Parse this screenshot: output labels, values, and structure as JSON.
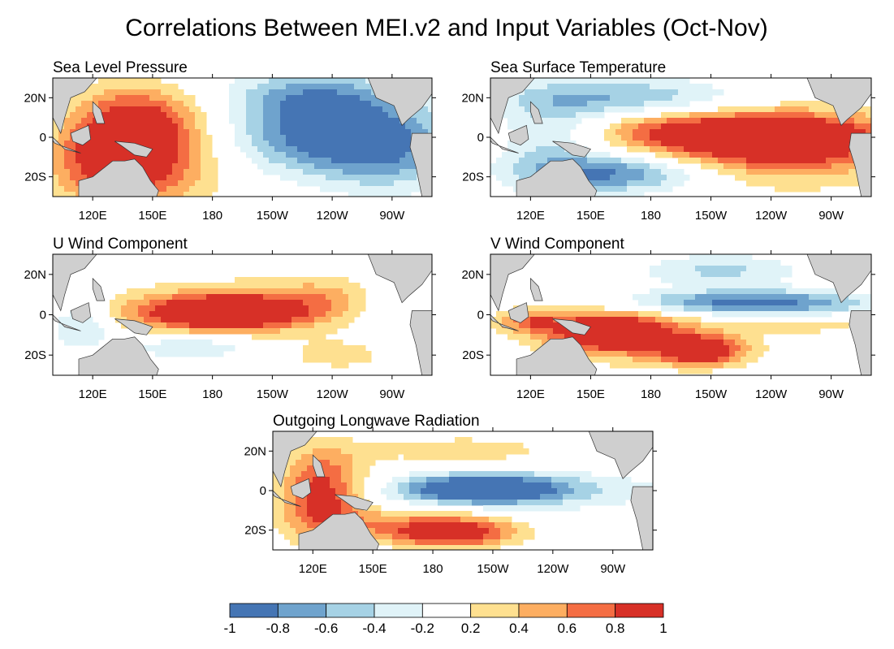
{
  "title": "Correlations Between MEI.v2 and Input Variables (Oct-Nov)",
  "chart_data": [
    {
      "type": "heatmap",
      "title": "Sea Level Pressure",
      "x_ticks": [
        "120E",
        "150E",
        "180",
        "150W",
        "120W",
        "90W"
      ],
      "y_ticks": [
        "20N",
        "0",
        "20S"
      ],
      "extent": {
        "lon": [
          100,
          290
        ],
        "lat": [
          -30,
          30
        ]
      },
      "blobs": [
        {
          "lon": 140,
          "lat": -12,
          "rx": 40,
          "ry": 24,
          "v": 1.0
        },
        {
          "lon": 150,
          "lat": 10,
          "rx": 28,
          "ry": 16,
          "v": 0.5
        },
        {
          "lon": 130,
          "lat": 0,
          "rx": 22,
          "ry": 26,
          "v": 0.4
        },
        {
          "lon": 240,
          "lat": 2,
          "rx": 50,
          "ry": 20,
          "v": -1.0
        },
        {
          "lon": 230,
          "lat": 22,
          "rx": 40,
          "ry": 12,
          "v": -0.5
        },
        {
          "lon": 270,
          "lat": -10,
          "rx": 35,
          "ry": 20,
          "v": -0.4
        }
      ]
    },
    {
      "type": "heatmap",
      "title": "Sea Surface Temperature",
      "x_ticks": [
        "120E",
        "150E",
        "180",
        "150W",
        "120W",
        "90W"
      ],
      "y_ticks": [
        "20N",
        "0",
        "20S"
      ],
      "extent": {
        "lon": [
          100,
          290
        ],
        "lat": [
          -30,
          30
        ]
      },
      "blobs": [
        {
          "lon": 235,
          "lat": 0,
          "rx": 65,
          "ry": 13,
          "v": 1.15
        },
        {
          "lon": 250,
          "lat": -8,
          "rx": 55,
          "ry": 20,
          "v": 0.45
        },
        {
          "lon": 190,
          "lat": 4,
          "rx": 35,
          "ry": 8,
          "v": 0.3
        },
        {
          "lon": 160,
          "lat": -18,
          "rx": 45,
          "ry": 10,
          "v": -0.85
        },
        {
          "lon": 165,
          "lat": 20,
          "rx": 60,
          "ry": 10,
          "v": -0.6
        },
        {
          "lon": 130,
          "lat": 0,
          "rx": 25,
          "ry": 22,
          "v": -0.4
        }
      ]
    },
    {
      "type": "heatmap",
      "title": "U Wind Component",
      "x_ticks": [
        "120E",
        "150E",
        "180",
        "150W",
        "120W",
        "90W"
      ],
      "y_ticks": [
        "20N",
        "0",
        "20S"
      ],
      "extent": {
        "lon": [
          100,
          290
        ],
        "lat": [
          -30,
          30
        ]
      },
      "blobs": [
        {
          "lon": 185,
          "lat": 1,
          "rx": 40,
          "ry": 8,
          "v": 1.15
        },
        {
          "lon": 190,
          "lat": 3,
          "rx": 65,
          "ry": 14,
          "v": 0.45
        },
        {
          "lon": 240,
          "lat": 10,
          "rx": 35,
          "ry": 10,
          "v": 0.3
        },
        {
          "lon": 245,
          "lat": -20,
          "rx": 30,
          "ry": 8,
          "v": 0.3
        },
        {
          "lon": 170,
          "lat": -16,
          "rx": 30,
          "ry": 6,
          "v": -0.45
        },
        {
          "lon": 115,
          "lat": -5,
          "rx": 15,
          "ry": 12,
          "v": -0.5
        },
        {
          "lon": 270,
          "lat": 5,
          "rx": 18,
          "ry": 18,
          "v": -0.3
        }
      ]
    },
    {
      "type": "heatmap",
      "title": "V Wind Component",
      "x_ticks": [
        "120E",
        "150E",
        "180",
        "150W",
        "120W",
        "90W"
      ],
      "y_ticks": [
        "20N",
        "0",
        "20S"
      ],
      "extent": {
        "lon": [
          100,
          290
        ],
        "lat": [
          -30,
          30
        ]
      },
      "blobs": [
        {
          "lon": 160,
          "lat": -8,
          "rx": 30,
          "ry": 10,
          "v": 1.0
        },
        {
          "lon": 205,
          "lat": -18,
          "rx": 20,
          "ry": 7,
          "v": 1.0
        },
        {
          "lon": 180,
          "lat": -12,
          "rx": 55,
          "ry": 13,
          "v": 0.45
        },
        {
          "lon": 230,
          "lat": 6,
          "rx": 60,
          "ry": 6,
          "v": -0.95
        },
        {
          "lon": 215,
          "lat": 22,
          "rx": 40,
          "ry": 8,
          "v": -0.45
        },
        {
          "lon": 260,
          "lat": -5,
          "rx": 30,
          "ry": 4,
          "v": 0.3
        },
        {
          "lon": 120,
          "lat": -3,
          "rx": 18,
          "ry": 6,
          "v": 0.6
        }
      ]
    },
    {
      "type": "heatmap",
      "title": "Outgoing Longwave Radiation",
      "x_ticks": [
        "120E",
        "150E",
        "180",
        "150W",
        "120W",
        "90W"
      ],
      "y_ticks": [
        "20N",
        "0",
        "20S"
      ],
      "extent": {
        "lon": [
          100,
          290
        ],
        "lat": [
          -30,
          30
        ]
      },
      "blobs": [
        {
          "lon": 125,
          "lat": -2,
          "rx": 22,
          "ry": 22,
          "v": 1.0
        },
        {
          "lon": 190,
          "lat": -22,
          "rx": 30,
          "ry": 7,
          "v": 0.85
        },
        {
          "lon": 175,
          "lat": -17,
          "rx": 45,
          "ry": 9,
          "v": 0.5
        },
        {
          "lon": 195,
          "lat": 20,
          "rx": 55,
          "ry": 9,
          "v": 0.3
        },
        {
          "lon": 205,
          "lat": 1,
          "rx": 35,
          "ry": 7,
          "v": -1.0
        },
        {
          "lon": 220,
          "lat": 0,
          "rx": 75,
          "ry": 10,
          "v": -0.5
        }
      ]
    }
  ],
  "colorbar": {
    "labels": [
      "-1",
      "-0.8",
      "-0.6",
      "-0.4",
      "-0.2",
      "0.2",
      "0.4",
      "0.6",
      "0.8",
      "1"
    ],
    "colors": [
      "#4575b4",
      "#6fa3cd",
      "#a6d2e5",
      "#e0f3f8",
      "#ffffff",
      "#fee090",
      "#fdae61",
      "#f46d43",
      "#d73027"
    ]
  }
}
